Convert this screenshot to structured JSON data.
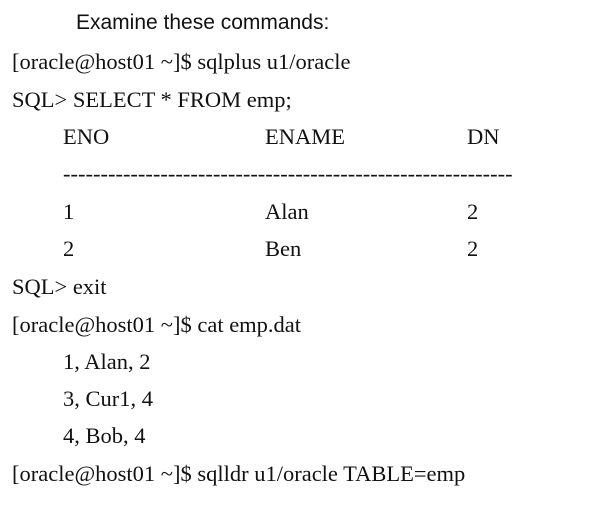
{
  "heading": "Examine these commands:",
  "lines": {
    "login": "[oracle@host01 ~]$ sqlplus u1/oracle",
    "select": "SQL> SELECT * FROM emp;",
    "exit": "SQL> exit",
    "cat": "[oracle@host01 ~]$ cat emp.dat",
    "sqlldr": "[oracle@host01 ~]$ sqlldr u1/oracle TABLE=emp"
  },
  "query_result": {
    "columns": [
      "ENO",
      "ENAME",
      "DN"
    ],
    "separator": "------------------------------------------------------------",
    "rows": [
      [
        "1",
        "Alan",
        "2"
      ],
      [
        "2",
        "Ben",
        "2"
      ]
    ]
  },
  "data_file": [
    "1, Alan, 2",
    "3, Cur1, 4",
    "4, Bob, 4"
  ]
}
